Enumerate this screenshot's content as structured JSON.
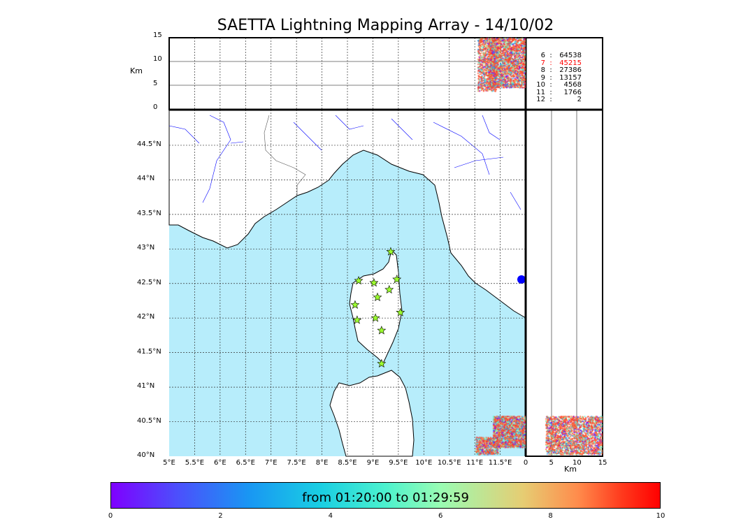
{
  "chart_data": {
    "type": "scatter",
    "title": "SAETTA Lightning Mapping Array - 14/10/02",
    "map": {
      "lon_range": [
        5,
        12
      ],
      "lat_range": [
        40,
        45
      ],
      "lon_ticks": [
        "5°E",
        "5.5°E",
        "6°E",
        "6.5°E",
        "7°E",
        "7.5°E",
        "8°E",
        "8.5°E",
        "9°E",
        "9.5°E",
        "10°E",
        "10.5°E",
        "11°E",
        "11.5°E"
      ],
      "lat_ticks": [
        "40°N",
        "40.5°N",
        "41°N",
        "41.5°N",
        "42°N",
        "42.5°N",
        "43°N",
        "43.5°N",
        "44°N",
        "44.5°N"
      ],
      "stations": [
        [
          8.72,
          42.54
        ],
        [
          9.02,
          42.51
        ],
        [
          9.35,
          42.96
        ],
        [
          9.47,
          42.56
        ],
        [
          9.32,
          42.41
        ],
        [
          9.09,
          42.3
        ],
        [
          8.65,
          42.19
        ],
        [
          9.54,
          42.08
        ],
        [
          8.69,
          41.97
        ],
        [
          9.05,
          42.0
        ],
        [
          9.17,
          41.82
        ],
        [
          9.17,
          41.34
        ]
      ],
      "clusters": [
        {
          "lon": [
            11,
            12
          ],
          "lat": [
            40.05,
            40.55
          ]
        }
      ]
    },
    "top_panel": {
      "ylabel": "Km",
      "ylim": [
        0,
        15
      ],
      "yticks": [
        "0",
        "5",
        "10",
        "15"
      ],
      "grid": [
        5,
        10
      ]
    },
    "side_panel": {
      "xlabel": "Km",
      "xlim": [
        0,
        15
      ],
      "xticks": [
        "0",
        "5",
        "10",
        "15"
      ],
      "grid": [
        5,
        10
      ]
    },
    "counts": [
      {
        "n": "6",
        "v": "64538",
        "highlight": false
      },
      {
        "n": "7",
        "v": "45215",
        "highlight": true
      },
      {
        "n": "8",
        "v": "27386",
        "highlight": false
      },
      {
        "n": "9",
        "v": "13157",
        "highlight": false
      },
      {
        "n": "10",
        "v": "4568",
        "highlight": false
      },
      {
        "n": "11",
        "v": "1766",
        "highlight": false
      },
      {
        "n": "12",
        "v": "2",
        "highlight": false
      }
    ],
    "colorbar": {
      "label": "from 01:20:00 to 01:29:59",
      "ticks": [
        "0",
        "2",
        "4",
        "6",
        "8",
        "10"
      ],
      "range": [
        0,
        10
      ]
    },
    "colors": {
      "sea": "#b7edfb",
      "highlight": "#ff0000",
      "river": "#0000ff"
    }
  }
}
